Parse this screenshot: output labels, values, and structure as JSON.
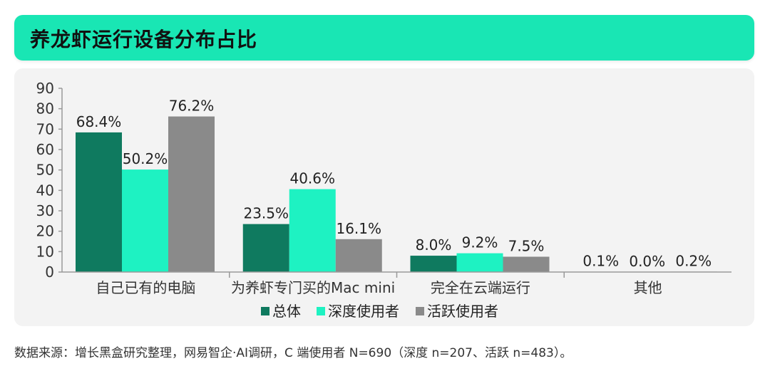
{
  "header": {
    "title": "养龙虾运行设备分布占比"
  },
  "source": "数据来源：增长黑盒研究整理，网易智企·AI调研，C 端使用者 N=690（深度 n=207、活跃 n=483）。",
  "colors": {
    "header_bg": "#19e6b4",
    "panel_bg": "#f3f3f3"
  },
  "chart_data": {
    "type": "bar",
    "categories": [
      "自己已有的电脑",
      "为养虾专门买的Mac mini",
      "完全在云端运行",
      "其他"
    ],
    "series": [
      {
        "name": "总体",
        "color": "#0f7a5f",
        "values": [
          68.4,
          23.5,
          8.0,
          0.1
        ],
        "labels": [
          "68.4%",
          "23.5%",
          "8.0%",
          "0.1%"
        ]
      },
      {
        "name": "深度使用者",
        "color": "#1ef2c2",
        "values": [
          50.2,
          40.6,
          9.2,
          0.0
        ],
        "labels": [
          "50.2%",
          "40.6%",
          "9.2%",
          "0.0%"
        ]
      },
      {
        "name": "活跃使用者",
        "color": "#8a8a8a",
        "values": [
          76.2,
          16.1,
          7.5,
          0.2
        ],
        "labels": [
          "76.2%",
          "16.1%",
          "7.5%",
          "0.2%"
        ]
      }
    ],
    "yticks": [
      "0",
      "10",
      "20",
      "30",
      "40",
      "50",
      "60",
      "70",
      "80",
      "90"
    ],
    "ylim": [
      0,
      90
    ],
    "grid": false,
    "legend_position": "bottom"
  }
}
